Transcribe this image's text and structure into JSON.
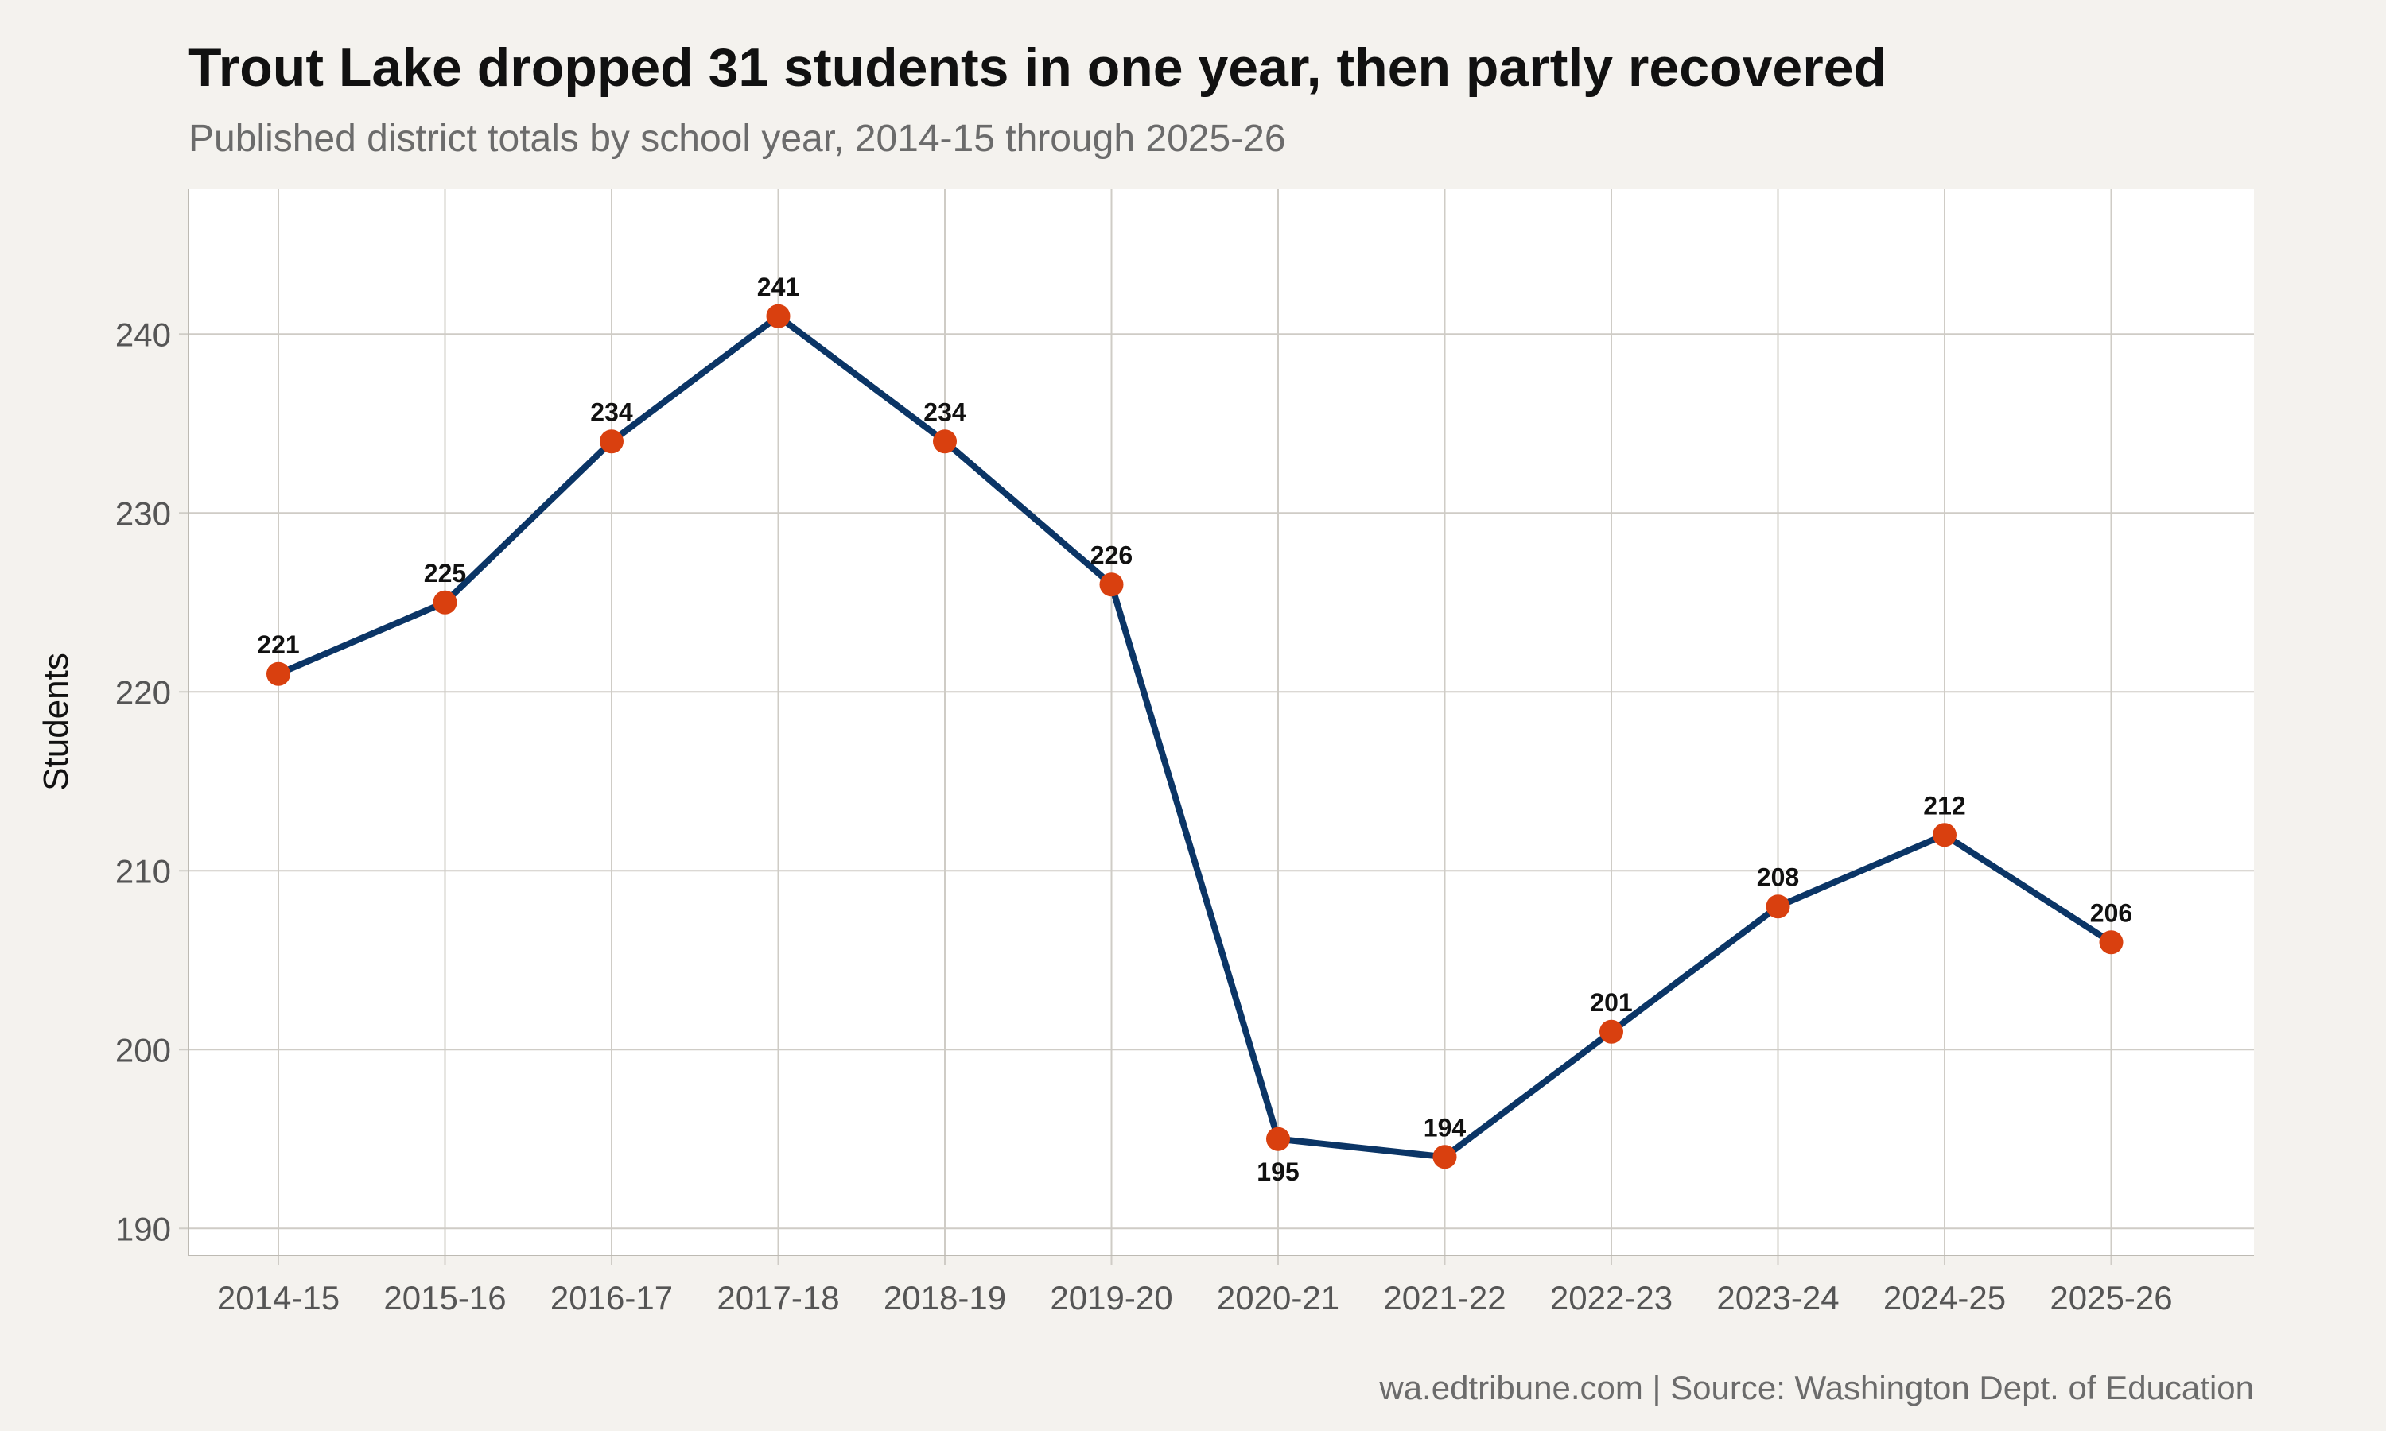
{
  "chart_data": {
    "type": "line",
    "title": "Trout Lake dropped 31 students in one year, then partly recovered",
    "subtitle": "Published district totals by school year, 2014-15 through 2025-26",
    "ylabel": "Students",
    "xlabel": "",
    "caption": "wa.edtribune.com | Source: Washington Dept. of Education",
    "categories": [
      "2014-15",
      "2015-16",
      "2016-17",
      "2017-18",
      "2018-19",
      "2019-20",
      "2020-21",
      "2021-22",
      "2022-23",
      "2023-24",
      "2024-25",
      "2025-26"
    ],
    "values": [
      221,
      225,
      234,
      241,
      234,
      226,
      195,
      194,
      201,
      208,
      212,
      206
    ],
    "label_below": [
      false,
      false,
      false,
      false,
      false,
      false,
      true,
      false,
      false,
      false,
      false,
      false
    ],
    "ylim": [
      188.5,
      248.1
    ],
    "yticks": [
      190,
      200,
      210,
      220,
      230,
      240
    ],
    "grid": true,
    "colors": {
      "line": "#0b3566",
      "point": "#d9400f",
      "panel": "#ffffff",
      "background": "#f4f2ee",
      "grid": "#cfccc6"
    }
  }
}
